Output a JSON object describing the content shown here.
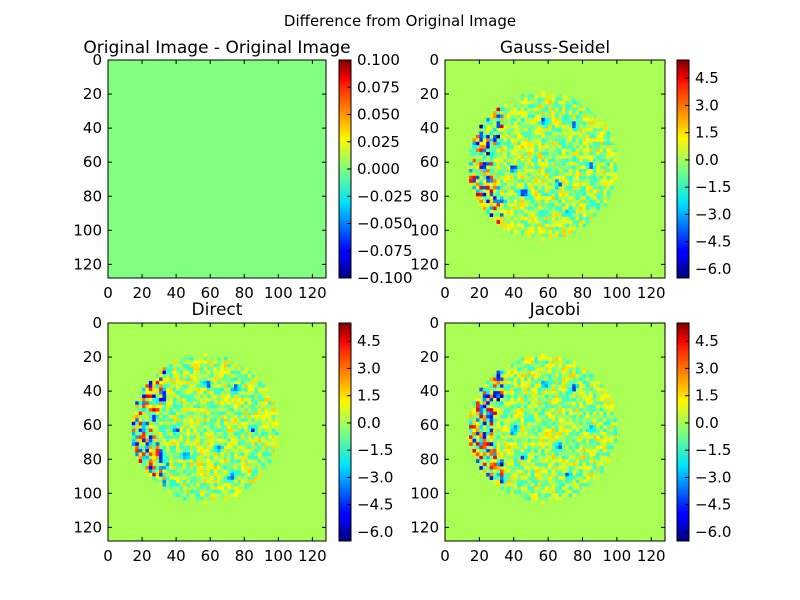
{
  "figure": {
    "title": "Difference from Original Image"
  },
  "chart_data": [
    {
      "type": "heatmap",
      "title": "Original Image - Original Image",
      "colormap": "jet",
      "pattern": "uniform",
      "xlim": [
        0,
        128
      ],
      "ylim": [
        128,
        0
      ],
      "xticks": [
        "0",
        "20",
        "40",
        "60",
        "80",
        "100",
        "120"
      ],
      "yticks": [
        "0",
        "20",
        "40",
        "60",
        "80",
        "100",
        "120"
      ],
      "fill_value": 0.0,
      "colorbar": {
        "range": [
          -0.1,
          0.1
        ],
        "ticks": [
          "0.100",
          "0.075",
          "0.050",
          "0.025",
          "0.000",
          "−0.025",
          "−0.050",
          "−0.075",
          "−0.100"
        ]
      }
    },
    {
      "type": "heatmap",
      "title": "Gauss-Seidel",
      "colormap": "jet",
      "pattern": "disk-noise",
      "xlim": [
        0,
        128
      ],
      "ylim": [
        128,
        0
      ],
      "xticks": [
        "0",
        "20",
        "40",
        "60",
        "80",
        "100",
        "120"
      ],
      "yticks": [
        "0",
        "20",
        "40",
        "60",
        "80",
        "100",
        "120"
      ],
      "background_value": 0.0,
      "disk": {
        "center": [
          57,
          62
        ],
        "radius": 43
      },
      "colorbar": {
        "range": [
          -6.5,
          5.5
        ],
        "ticks": [
          "4.5",
          "3.0",
          "1.5",
          "0.0",
          "−1.5",
          "−3.0",
          "−4.5",
          "−6.0"
        ]
      }
    },
    {
      "type": "heatmap",
      "title": "Direct",
      "colormap": "jet",
      "pattern": "disk-noise",
      "xlim": [
        0,
        128
      ],
      "ylim": [
        128,
        0
      ],
      "xticks": [
        "0",
        "20",
        "40",
        "60",
        "80",
        "100",
        "120"
      ],
      "yticks": [
        "0",
        "20",
        "40",
        "60",
        "80",
        "100",
        "120"
      ],
      "background_value": 0.0,
      "disk": {
        "center": [
          57,
          62
        ],
        "radius": 43
      },
      "colorbar": {
        "range": [
          -6.5,
          5.5
        ],
        "ticks": [
          "4.5",
          "3.0",
          "1.5",
          "0.0",
          "−1.5",
          "−3.0",
          "−4.5",
          "−6.0"
        ]
      }
    },
    {
      "type": "heatmap",
      "title": "Jacobi",
      "colormap": "jet",
      "pattern": "disk-noise",
      "xlim": [
        0,
        128
      ],
      "ylim": [
        128,
        0
      ],
      "xticks": [
        "0",
        "20",
        "40",
        "60",
        "80",
        "100",
        "120"
      ],
      "yticks": [
        "0",
        "20",
        "40",
        "60",
        "80",
        "100",
        "120"
      ],
      "background_value": 0.0,
      "disk": {
        "center": [
          57,
          62
        ],
        "radius": 43
      },
      "colorbar": {
        "range": [
          -6.5,
          5.5
        ],
        "ticks": [
          "4.5",
          "3.0",
          "1.5",
          "0.0",
          "−1.5",
          "−3.0",
          "−4.5",
          "−6.0"
        ]
      }
    }
  ]
}
